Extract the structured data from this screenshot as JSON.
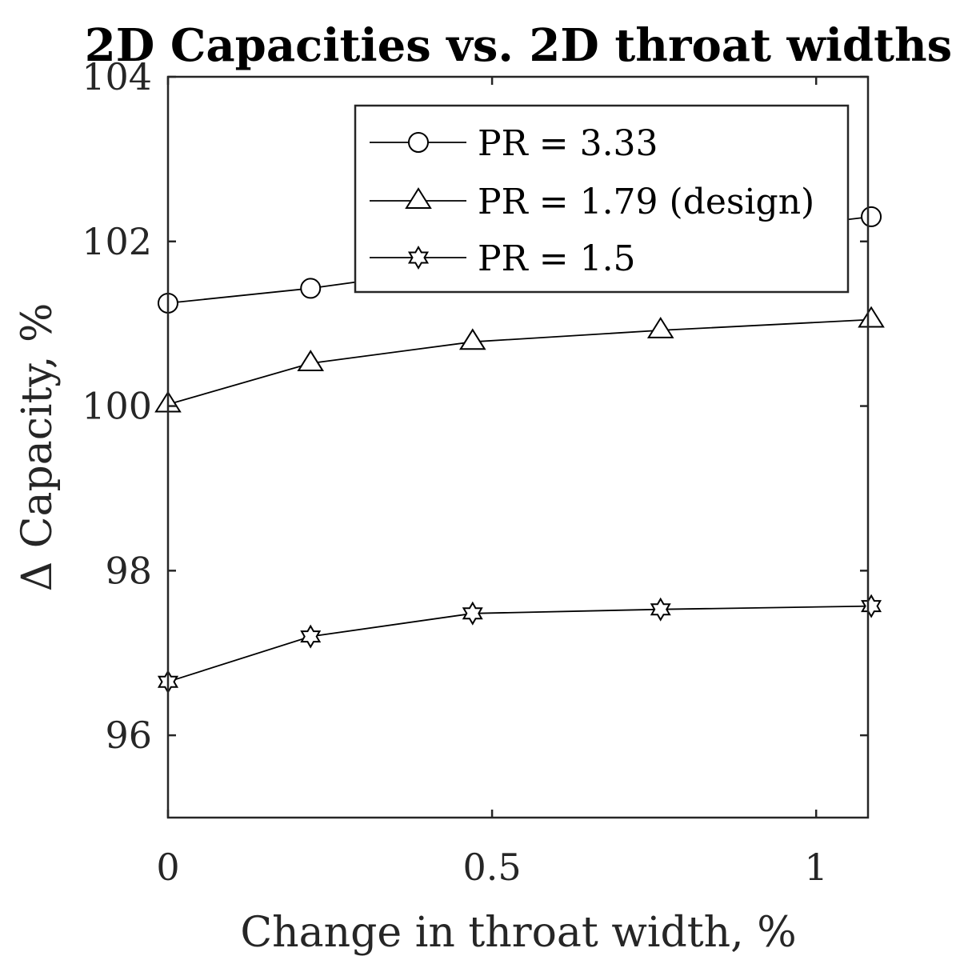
{
  "chart_data": {
    "type": "line",
    "title": "2D Capacities vs. 2D throat widths",
    "xlabel": "Change in throat width, %",
    "ylabel": "Δ Capacity, %",
    "xlim": [
      0,
      1.08
    ],
    "ylim": [
      95,
      104
    ],
    "xticks": [
      0,
      0.5,
      1
    ],
    "xtick_labels": [
      "0",
      "0.5",
      "1"
    ],
    "yticks": [
      96,
      98,
      100,
      102,
      104
    ],
    "ytick_labels": [
      "96",
      "98",
      "100",
      "102",
      "104"
    ],
    "grid": false,
    "legend_position": "top-right",
    "x": [
      0,
      0.22,
      0.47,
      0.76,
      1.085
    ],
    "series": [
      {
        "name": "PR = 3.33",
        "marker": "circle",
        "values": [
          101.25,
          101.43,
          101.7,
          102.0,
          102.3
        ]
      },
      {
        "name": "PR = 1.79 (design)",
        "marker": "triangle",
        "values": [
          100.02,
          100.52,
          100.78,
          100.92,
          101.05
        ]
      },
      {
        "name": "PR = 1.5",
        "marker": "hexagram",
        "values": [
          96.65,
          97.2,
          97.48,
          97.53,
          97.57
        ]
      }
    ],
    "colors": {
      "line": "#000000",
      "axis": "#262626"
    }
  }
}
